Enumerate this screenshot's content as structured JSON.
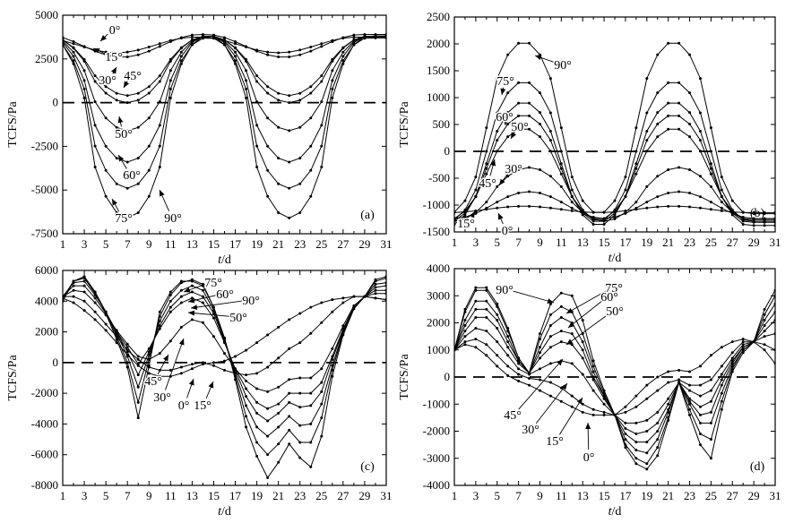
{
  "chart_data": [
    {
      "panel": "(a)",
      "type": "line",
      "xlabel_italic": "t",
      "xlabel_rest": "/d",
      "ylabel": "TCFS/Pa",
      "xlim": [
        1,
        31
      ],
      "ylim": [
        -7500,
        5000
      ],
      "xticks": [
        1,
        3,
        5,
        7,
        9,
        11,
        13,
        15,
        17,
        19,
        21,
        23,
        25,
        27,
        29,
        31
      ],
      "yticks": [
        -7500,
        -5000,
        -2500,
        0,
        2500,
        5000
      ],
      "yticklabels": [
        "-7500",
        "-5000",
        "-2500",
        "0",
        "2500",
        "5000"
      ],
      "reference_line": 0,
      "series": [
        {
          "name": "0°",
          "x": [
            1,
            31
          ],
          "mean": 3300,
          "amp": 450,
          "min_day": 6,
          "period": 14,
          "sharp": 1
        },
        {
          "name": "15°",
          "x": [
            1,
            31
          ],
          "mean": 3250,
          "amp": 650,
          "min_day": 6.5,
          "period": 14,
          "sharp": 1
        },
        {
          "name": "30°",
          "x": [
            1,
            31
          ],
          "mean": 2100,
          "amp": 1700,
          "min_day": 7,
          "period": 14.5,
          "sharp": 1.2
        },
        {
          "name": "45°",
          "x": [
            1,
            31
          ],
          "mean": 1900,
          "amp": 1900,
          "min_day": 7,
          "period": 14.5,
          "sharp": 1.3
        },
        {
          "name": "50°",
          "x": [
            1,
            31
          ],
          "mean": 1100,
          "amp": 2700,
          "min_day": 7,
          "period": 14.5,
          "sharp": 1.4
        },
        {
          "name": "60°",
          "x": [
            1,
            31
          ],
          "mean": 200,
          "amp": 3600,
          "min_day": 7,
          "period": 14.5,
          "sharp": 1.5
        },
        {
          "name": "75°",
          "x": [
            1,
            31
          ],
          "mean": -600,
          "amp": 4300,
          "min_day": 7,
          "period": 14.5,
          "sharp": 1.6
        },
        {
          "name": "90°",
          "x": [
            1,
            31
          ],
          "mean": -1400,
          "amp": 5200,
          "min_day": 7,
          "period": 14.5,
          "sharp": 1.6
        }
      ],
      "annotations": [
        {
          "text": "0°"
        },
        {
          "text": "15°"
        },
        {
          "text": "30°"
        },
        {
          "text": "45°"
        },
        {
          "text": "50°"
        },
        {
          "text": "60°"
        },
        {
          "text": "75°"
        },
        {
          "text": "90°"
        }
      ]
    },
    {
      "panel": "(b)",
      "type": "line",
      "xlabel_italic": "t",
      "xlabel_rest": "/d",
      "ylabel": "TCFS/Pa",
      "xlim": [
        1,
        31
      ],
      "ylim": [
        -1500,
        2500
      ],
      "xticks": [
        1,
        3,
        5,
        7,
        9,
        11,
        13,
        15,
        17,
        19,
        21,
        23,
        25,
        27,
        29,
        31
      ],
      "yticks": [
        -1500,
        -1000,
        -500,
        0,
        500,
        1000,
        1500,
        2000,
        2500
      ],
      "yticklabels": [
        "-1500",
        "-1000",
        "-500",
        "0",
        "500",
        "1000",
        "1500",
        "2000",
        "2500"
      ],
      "reference_line": 0,
      "series": [
        {
          "name": "0°",
          "mean": -1080,
          "amp": 60,
          "peak_day": 7.5,
          "period": 14,
          "sharp": 1
        },
        {
          "name": "15°",
          "mean": -1000,
          "amp": 250,
          "peak_day": 8,
          "period": 14,
          "sharp": 1
        },
        {
          "name": "30°",
          "mean": -800,
          "amp": 500,
          "peak_day": 8,
          "period": 14,
          "sharp": 1.2
        },
        {
          "name": "45°",
          "mean": -420,
          "amp": 850,
          "peak_day": 7.5,
          "period": 14,
          "sharp": 1.2
        },
        {
          "name": "50°",
          "mean": -320,
          "amp": 1000,
          "peak_day": 7.5,
          "period": 14,
          "sharp": 1.3
        },
        {
          "name": "60°",
          "mean": -230,
          "amp": 1150,
          "peak_day": 7.5,
          "period": 14,
          "sharp": 1.3
        },
        {
          "name": "75°",
          "mean": 0,
          "amp": 1300,
          "peak_day": 7.5,
          "period": 14,
          "sharp": 1.4
        },
        {
          "name": "90°",
          "mean": 440,
          "amp": 1600,
          "peak_day": 7.5,
          "period": 14,
          "sharp": 1.5
        }
      ],
      "annotations": [
        {
          "text": "90°"
        },
        {
          "text": "75°"
        },
        {
          "text": "60°"
        },
        {
          "text": "50°"
        },
        {
          "text": "30°"
        },
        {
          "text": "45°"
        },
        {
          "text": "15°"
        },
        {
          "text": "0°"
        }
      ]
    },
    {
      "panel": "(c)",
      "type": "line",
      "xlabel_italic": "t",
      "xlabel_rest": "/d",
      "ylabel": "TCFS/Pa",
      "xlim": [
        1,
        31
      ],
      "ylim": [
        -8000,
        6000
      ],
      "xticks": [
        1,
        3,
        5,
        7,
        9,
        11,
        13,
        15,
        17,
        19,
        21,
        23,
        25,
        27,
        29,
        31
      ],
      "yticks": [
        -8000,
        -6000,
        -4000,
        -2000,
        0,
        2000,
        4000,
        6000
      ],
      "yticklabels": [
        "-8000",
        "-6000",
        "-4000",
        "-2000",
        "0",
        "2000",
        "4000",
        "6000"
      ],
      "reference_line": 0,
      "series": [
        {
          "name": "0°",
          "values": [
            4200,
            3900,
            3400,
            2800,
            2100,
            1300,
            500,
            -200,
            -700,
            -900,
            -900,
            -700,
            -400,
            -100,
            0,
            100,
            400,
            800,
            1300,
            1800,
            2300,
            2800,
            3200,
            3600,
            3900,
            4100,
            4200,
            4300,
            4300,
            4200,
            4100
          ]
        },
        {
          "name": "15°",
          "values": [
            4300,
            4300,
            4000,
            3300,
            2500,
            1700,
            800,
            200,
            -300,
            -500,
            -500,
            -300,
            -100,
            0,
            -200,
            -500,
            -700,
            -800,
            -700,
            -300,
            300,
            900,
            1300,
            1900,
            2600,
            3300,
            3900,
            4300,
            4300,
            4200,
            4100
          ]
        },
        {
          "name": "30°",
          "values": [
            4300,
            4700,
            4600,
            3900,
            3100,
            2100,
            1200,
            400,
            200,
            600,
            1400,
            2300,
            2800,
            2600,
            1700,
            600,
            -400,
            -1200,
            -1700,
            -1900,
            -1600,
            -1100,
            -1000,
            -1000,
            -400,
            900,
            2400,
            3700,
            4300,
            4500,
            4500
          ]
        },
        {
          "name": "45°",
          "values": [
            4300,
            5000,
            5000,
            4200,
            3200,
            2000,
            1000,
            -100,
            900,
            2200,
            3300,
            3900,
            4200,
            3900,
            2900,
            1300,
            -400,
            -1700,
            -2600,
            -3000,
            -2700,
            -2000,
            -2000,
            -2000,
            -1300,
            400,
            2200,
            3600,
            4300,
            4700,
            4700
          ]
        },
        {
          "name": "50°",
          "values": [
            4300,
            5200,
            5300,
            4400,
            3300,
            2000,
            700,
            -800,
            700,
            2400,
            3600,
            4300,
            4600,
            4300,
            3200,
            1400,
            -500,
            -2200,
            -3300,
            -3800,
            -3300,
            -2600,
            -2900,
            -2800,
            -1900,
            200,
            2100,
            3600,
            4300,
            4900,
            5000
          ]
        },
        {
          "name": "60°",
          "values": [
            4200,
            5300,
            5500,
            4500,
            3300,
            1900,
            400,
            -1600,
            500,
            2700,
            4000,
            4700,
            5000,
            4700,
            3400,
            1500,
            -700,
            -2800,
            -4200,
            -4800,
            -4200,
            -3500,
            -4100,
            -4000,
            -2700,
            -200,
            2000,
            3600,
            4300,
            5100,
            5200
          ]
        },
        {
          "name": "75°",
          "values": [
            4100,
            5300,
            5600,
            4600,
            3300,
            1700,
            0,
            -2600,
            200,
            3000,
            4400,
            5200,
            5400,
            5100,
            3600,
            1600,
            -900,
            -3500,
            -5200,
            -6000,
            -5300,
            -4400,
            -5200,
            -5200,
            -3600,
            -500,
            1900,
            3600,
            4300,
            5300,
            5500
          ]
        },
        {
          "name": "90°",
          "values": [
            4000,
            5300,
            5600,
            4600,
            3200,
            1500,
            -300,
            -3600,
            -200,
            3300,
            4600,
            5300,
            5300,
            5000,
            3600,
            1600,
            -1100,
            -4200,
            -6100,
            -7500,
            -6500,
            -5300,
            -6200,
            -6800,
            -4800,
            -900,
            1800,
            3500,
            4300,
            5400,
            5600
          ]
        }
      ],
      "annotations": [
        {
          "text": "75°"
        },
        {
          "text": "60°"
        },
        {
          "text": "90°"
        },
        {
          "text": "50°"
        },
        {
          "text": "45°"
        },
        {
          "text": "30°"
        },
        {
          "text": "0°"
        },
        {
          "text": "15°"
        }
      ]
    },
    {
      "panel": "(d)",
      "type": "line",
      "xlabel_italic": "t",
      "xlabel_rest": "/d",
      "ylabel": "TCFS/Pa",
      "xlim": [
        1,
        31
      ],
      "ylim": [
        -4000,
        4000
      ],
      "xticks": [
        1,
        3,
        5,
        7,
        9,
        11,
        13,
        15,
        17,
        19,
        21,
        23,
        25,
        27,
        29,
        31
      ],
      "yticks": [
        -4000,
        -3000,
        -2000,
        -1000,
        0,
        1000,
        2000,
        3000,
        4000
      ],
      "yticklabels": [
        "-4000",
        "-3000",
        "-2000",
        "-1000",
        "0",
        "1000",
        "2000",
        "3000",
        "4000"
      ],
      "reference_line": 0,
      "series": [
        {
          "name": "0°",
          "values": [
            1000,
            1200,
            1100,
            800,
            400,
            50,
            -150,
            -300,
            -500,
            -700,
            -900,
            -1100,
            -1300,
            -1400,
            -1400,
            -1400,
            -1100,
            -700,
            -300,
            0,
            200,
            250,
            200,
            400,
            800,
            1100,
            1300,
            1400,
            1300,
            1000,
            500
          ]
        },
        {
          "name": "15°",
          "values": [
            1000,
            1300,
            1400,
            1200,
            800,
            400,
            100,
            -50,
            -100,
            -200,
            -400,
            -700,
            -1000,
            -1200,
            -1300,
            -1400,
            -1300,
            -1100,
            -800,
            -500,
            -200,
            -100,
            -300,
            -300,
            -100,
            400,
            900,
            1300,
            1300,
            1200,
            1000
          ]
        },
        {
          "name": "30°",
          "values": [
            1000,
            1500,
            1800,
            1700,
            1300,
            800,
            300,
            100,
            300,
            500,
            600,
            500,
            100,
            -500,
            -1000,
            -1400,
            -1700,
            -1700,
            -1600,
            -1300,
            -800,
            -200,
            -500,
            -700,
            -500,
            100,
            700,
            1200,
            1300,
            1500,
            1600
          ]
        },
        {
          "name": "45°",
          "values": [
            1000,
            1700,
            2200,
            2200,
            1800,
            1100,
            500,
            150,
            700,
            1100,
            1300,
            1200,
            700,
            -100,
            -800,
            -1400,
            -1900,
            -2100,
            -2000,
            -1700,
            -1000,
            -200,
            -800,
            -1100,
            -900,
            -100,
            600,
            1100,
            1300,
            1700,
            2100
          ]
        },
        {
          "name": "50°",
          "values": [
            1000,
            1900,
            2500,
            2500,
            2100,
            1300,
            600,
            150,
            900,
            1500,
            1700,
            1600,
            1000,
            0,
            -700,
            -1400,
            -2100,
            -2400,
            -2400,
            -2000,
            -1200,
            -200,
            -900,
            -1400,
            -1300,
            -300,
            500,
            1100,
            1300,
            1900,
            2400
          ]
        },
        {
          "name": "60°",
          "values": [
            1000,
            2100,
            2800,
            2800,
            2300,
            1500,
            600,
            150,
            1100,
            1900,
            2200,
            2000,
            1300,
            200,
            -700,
            -1400,
            -2300,
            -2700,
            -2800,
            -2300,
            -1300,
            -200,
            -1000,
            -1700,
            -1700,
            -600,
            400,
            1000,
            1300,
            2100,
            2700
          ]
        },
        {
          "name": "75°",
          "values": [
            1000,
            2400,
            3200,
            3200,
            2600,
            1700,
            700,
            150,
            1400,
            2300,
            2600,
            2400,
            1600,
            400,
            -600,
            -1400,
            -2500,
            -3000,
            -3200,
            -2600,
            -1500,
            -200,
            -1200,
            -2100,
            -2300,
            -900,
            300,
            1000,
            1300,
            2300,
            3000
          ]
        },
        {
          "name": "90°",
          "values": [
            1000,
            2500,
            3300,
            3300,
            2700,
            1800,
            700,
            150,
            1600,
            2700,
            3100,
            3000,
            2100,
            600,
            -500,
            -1400,
            -2600,
            -3200,
            -3400,
            -2900,
            -1600,
            -200,
            -1400,
            -2500,
            -3000,
            -1200,
            200,
            900,
            1300,
            2500,
            3200
          ]
        }
      ],
      "annotations": [
        {
          "text": "90°"
        },
        {
          "text": "75°"
        },
        {
          "text": "60°"
        },
        {
          "text": "50°"
        },
        {
          "text": "45°"
        },
        {
          "text": "30°"
        },
        {
          "text": "15°"
        },
        {
          "text": "0°"
        }
      ]
    }
  ]
}
